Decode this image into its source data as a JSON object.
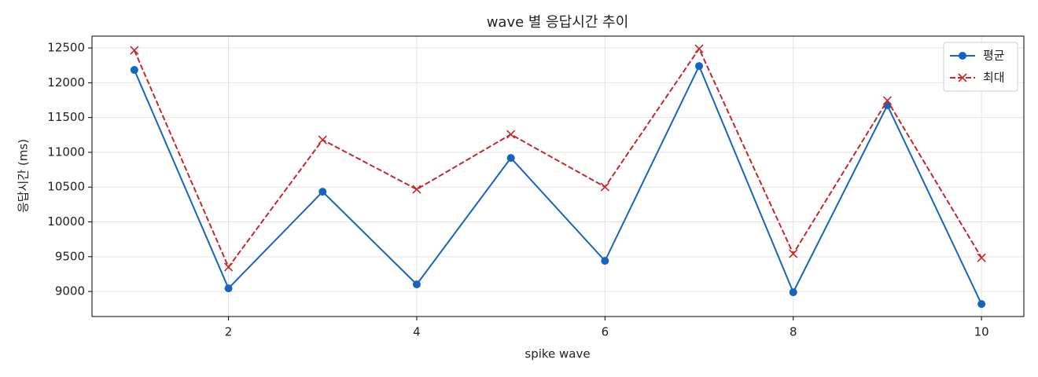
{
  "chart_data": {
    "type": "line",
    "title": "wave 별 응답시간 추이",
    "xlabel": "spike wave",
    "ylabel": "응답시간 (ms)",
    "x": [
      1,
      2,
      3,
      4,
      5,
      6,
      7,
      8,
      9,
      10
    ],
    "series": [
      {
        "name": "평균",
        "color": "#1565c0",
        "marker": "circle",
        "dash": "solid",
        "values": [
          12184,
          9045,
          10434,
          9102,
          10919,
          9440,
          12240,
          8989,
          11676,
          8819
        ]
      },
      {
        "name": "최대",
        "color": "#c62828",
        "marker": "x",
        "dash": "dashed",
        "values": [
          12466,
          9350,
          11179,
          10468,
          11258,
          10502,
          12489,
          9542,
          11744,
          9485
        ]
      }
    ],
    "xlim": [
      0.55,
      10.45
    ],
    "ylim": [
      8640,
      12670
    ],
    "xticks": [
      2,
      4,
      6,
      8,
      10
    ],
    "yticks": [
      9000,
      9500,
      10000,
      10500,
      11000,
      11500,
      12000,
      12500
    ],
    "grid": true,
    "legend": "upper right"
  }
}
